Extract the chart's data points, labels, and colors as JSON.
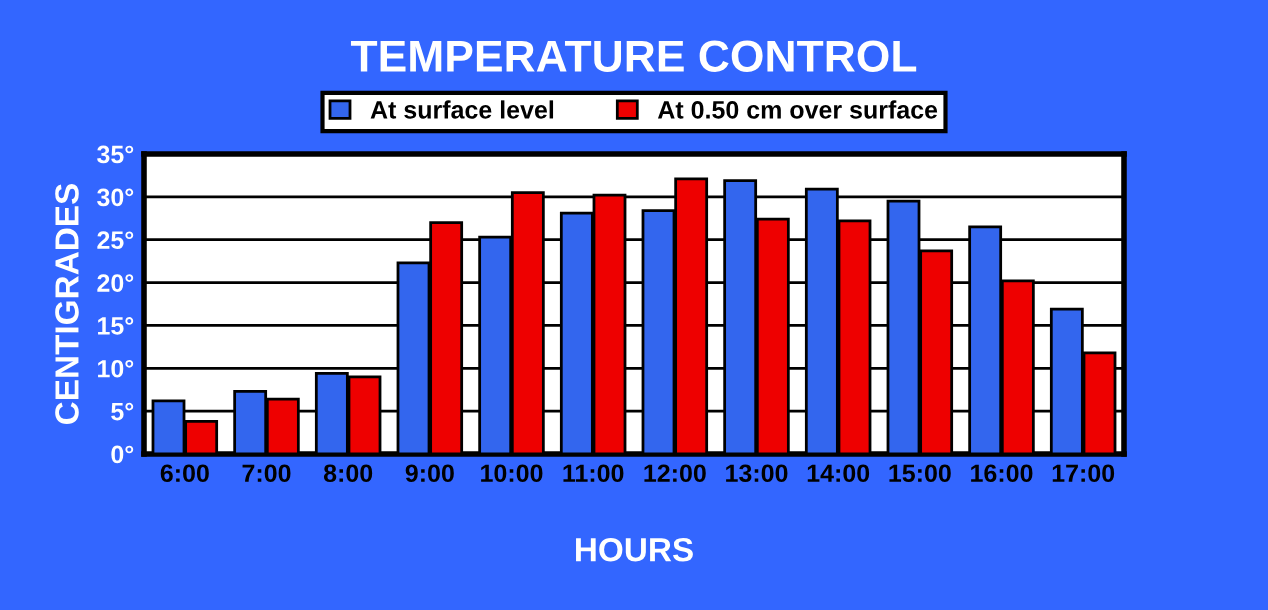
{
  "chart_data": {
    "type": "bar",
    "title": "TEMPERATURE CONTROL",
    "xlabel": "HOURS",
    "ylabel": "CENTIGRADES",
    "categories": [
      "6:00",
      "7:00",
      "8:00",
      "9:00",
      "10:00",
      "11:00",
      "12:00",
      "13:00",
      "14:00",
      "15:00",
      "16:00",
      "17:00"
    ],
    "series": [
      {
        "name": "At surface level",
        "color": "#3366ee",
        "values": [
          6.2,
          7.3,
          9.4,
          22.3,
          25.3,
          28.1,
          28.4,
          31.9,
          30.9,
          29.5,
          26.5,
          16.9
        ]
      },
      {
        "name": "At 0.50 cm over surface",
        "color": "#ee0000",
        "values": [
          3.8,
          6.4,
          9.0,
          27.0,
          30.5,
          30.2,
          32.1,
          27.4,
          27.2,
          23.7,
          20.2,
          11.8
        ]
      }
    ],
    "ylim": [
      0,
      35
    ],
    "yticks": [
      {
        "value": 0,
        "label": "0°"
      },
      {
        "value": 5,
        "label": "5°"
      },
      {
        "value": 10,
        "label": "10°"
      },
      {
        "value": 15,
        "label": "15°"
      },
      {
        "value": 20,
        "label": "20°"
      },
      {
        "value": 25,
        "label": "25°"
      },
      {
        "value": 30,
        "label": "30°"
      },
      {
        "value": 35,
        "label": "35°"
      }
    ],
    "grid": "y",
    "legend": "top"
  }
}
